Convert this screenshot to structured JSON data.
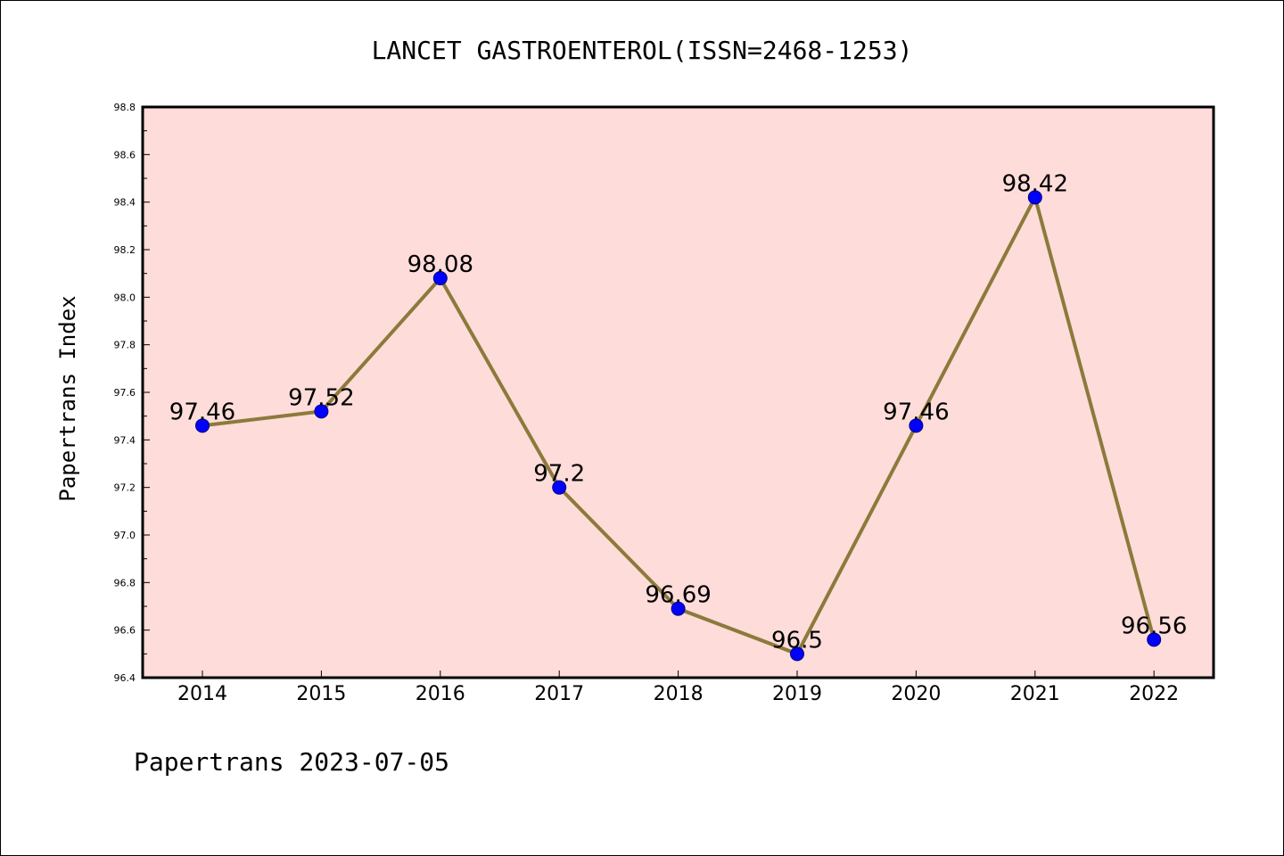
{
  "colors": {
    "plot_background": "#fddcda",
    "line": "#8b7a3a",
    "marker_fill": "#0000ff",
    "marker_stroke": "#000080",
    "axis": "#000000"
  },
  "footer": "Papertrans 2023-07-05",
  "chart_data": {
    "type": "line",
    "title": "LANCET GASTROENTEROL(ISSN=2468-1253)",
    "xlabel": "",
    "ylabel": "Papertrans Index",
    "categories": [
      "2014",
      "2015",
      "2016",
      "2017",
      "2018",
      "2019",
      "2020",
      "2021",
      "2022"
    ],
    "values": [
      97.46,
      97.52,
      98.08,
      97.2,
      96.69,
      96.5,
      97.46,
      98.42,
      96.56
    ],
    "data_labels": [
      "97.46",
      "97.52",
      "98.08",
      "97.2",
      "96.69",
      "96.5",
      "97.46",
      "98.42",
      "96.56"
    ],
    "ylim": [
      96.4,
      98.8
    ],
    "yticks": [
      "96.4",
      "96.6",
      "96.8",
      "97.0",
      "97.2",
      "97.4",
      "97.6",
      "97.8",
      "98.0",
      "98.2",
      "98.4",
      "98.6",
      "98.8"
    ],
    "grid": false,
    "legend": "none"
  }
}
